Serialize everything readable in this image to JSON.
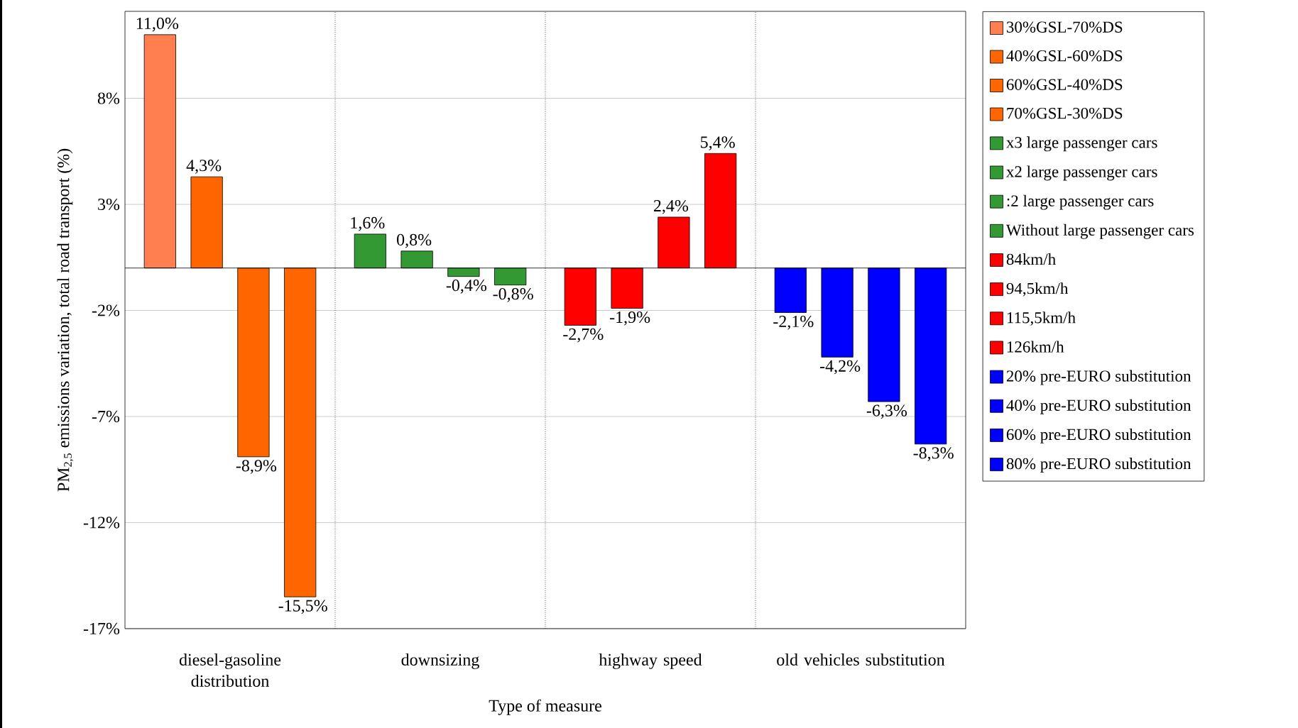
{
  "chart_data": {
    "type": "bar",
    "ylabel": "PM$_{2,5}$ emissions variation, total road transport (%)",
    "xlabel": "Type of measure",
    "categories": [
      "diesel-gasoline distribution",
      "downsizing",
      "highway speed",
      "old vehicles substitution"
    ],
    "ylim": [
      -17,
      12.1
    ],
    "yticks": [
      {
        "value": -17,
        "label": "-17%"
      },
      {
        "value": -12,
        "label": "-12%"
      },
      {
        "value": -7,
        "label": "-7%"
      },
      {
        "value": -2,
        "label": "-2%"
      },
      {
        "value": 3,
        "label": "3%"
      },
      {
        "value": 8,
        "label": "8%"
      }
    ],
    "grid": "y",
    "legend": "right",
    "series": [
      {
        "name": "30%GSL-70%DS",
        "color": "#ff7f50",
        "values": [
          11.0,
          null,
          null,
          null
        ],
        "value_labels": [
          "11,0%",
          null,
          null,
          null
        ]
      },
      {
        "name": "40%GSL-60%DS",
        "color": "#ff6600",
        "values": [
          4.3,
          null,
          null,
          null
        ],
        "value_labels": [
          "4,3%",
          null,
          null,
          null
        ]
      },
      {
        "name": "60%GSL-40%DS",
        "color": "#ff6600",
        "values": [
          -8.9,
          null,
          null,
          null
        ],
        "value_labels": [
          "-8,9%",
          null,
          null,
          null
        ]
      },
      {
        "name": "70%GSL-30%DS",
        "color": "#ff6600",
        "values": [
          -15.5,
          null,
          null,
          null
        ],
        "value_labels": [
          "-15,5%",
          null,
          null,
          null
        ]
      },
      {
        "name": "x3 large passenger cars",
        "color": "#339933",
        "values": [
          null,
          1.6,
          null,
          null
        ],
        "value_labels": [
          null,
          "1,6%",
          null,
          null
        ]
      },
      {
        "name": "x2 large passenger cars",
        "color": "#339933",
        "values": [
          null,
          0.8,
          null,
          null
        ],
        "value_labels": [
          null,
          "0,8%",
          null,
          null
        ]
      },
      {
        "name": ":2 large passenger cars",
        "color": "#339933",
        "values": [
          null,
          -0.4,
          null,
          null
        ],
        "value_labels": [
          null,
          "-0,4%",
          null,
          null
        ]
      },
      {
        "name": "Without large passenger cars",
        "color": "#339933",
        "values": [
          null,
          -0.8,
          null,
          null
        ],
        "value_labels": [
          null,
          "-0,8%",
          null,
          null
        ]
      },
      {
        "name": "84km/h",
        "color": "#ff0000",
        "values": [
          null,
          null,
          -2.7,
          null
        ],
        "value_labels": [
          null,
          null,
          "-2,7%",
          null
        ]
      },
      {
        "name": "94,5km/h",
        "color": "#ff0000",
        "values": [
          null,
          null,
          -1.9,
          null
        ],
        "value_labels": [
          null,
          null,
          "-1,9%",
          null
        ]
      },
      {
        "name": "115,5km/h",
        "color": "#ff0000",
        "values": [
          null,
          null,
          2.4,
          null
        ],
        "value_labels": [
          null,
          null,
          "2,4%",
          null
        ]
      },
      {
        "name": "126km/h",
        "color": "#ff0000",
        "values": [
          null,
          null,
          5.4,
          null
        ],
        "value_labels": [
          null,
          null,
          "5,4%",
          null
        ]
      },
      {
        "name": "20% pre-EURO substitution",
        "color": "#0000ff",
        "values": [
          null,
          null,
          null,
          -2.1
        ],
        "value_labels": [
          null,
          null,
          null,
          "-2,1%"
        ]
      },
      {
        "name": "40% pre-EURO substitution",
        "color": "#0000ff",
        "values": [
          null,
          null,
          null,
          -4.2
        ],
        "value_labels": [
          null,
          null,
          null,
          "-4,2%"
        ]
      },
      {
        "name": "60% pre-EURO substitution",
        "color": "#0000ff",
        "values": [
          null,
          null,
          null,
          -6.3
        ],
        "value_labels": [
          null,
          null,
          null,
          "-6,3%"
        ]
      },
      {
        "name": "80% pre-EURO substitution",
        "color": "#0000ff",
        "values": [
          null,
          null,
          null,
          -8.3
        ],
        "value_labels": [
          null,
          null,
          null,
          "-8,3%"
        ]
      }
    ]
  }
}
